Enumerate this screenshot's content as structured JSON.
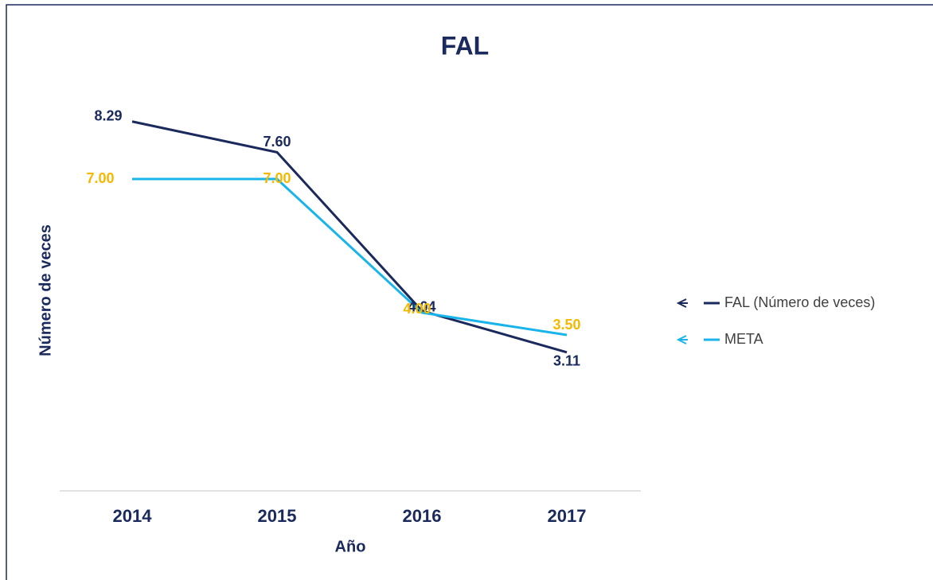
{
  "chart_data": {
    "type": "line",
    "title": "FAL",
    "xlabel": "Año",
    "ylabel": "Número de veces",
    "categories": [
      "2014",
      "2015",
      "2016",
      "2017"
    ],
    "series": [
      {
        "name": "FAL (Número de veces)",
        "color": "#1b2a5c",
        "label_color": "#1b2a5c",
        "values": [
          8.29,
          7.6,
          4.04,
          3.11
        ],
        "value_labels": [
          "8.29",
          "7.60",
          "4.04",
          "3.11"
        ]
      },
      {
        "name": "META",
        "color": "#19b4ea",
        "label_color": "#f5b800",
        "values": [
          7,
          7,
          4,
          3.5
        ],
        "value_labels": [
          "7.00",
          "7.00",
          "4.00",
          "3.50"
        ]
      }
    ],
    "ylim": [
      0,
      9
    ],
    "legend": "right"
  }
}
